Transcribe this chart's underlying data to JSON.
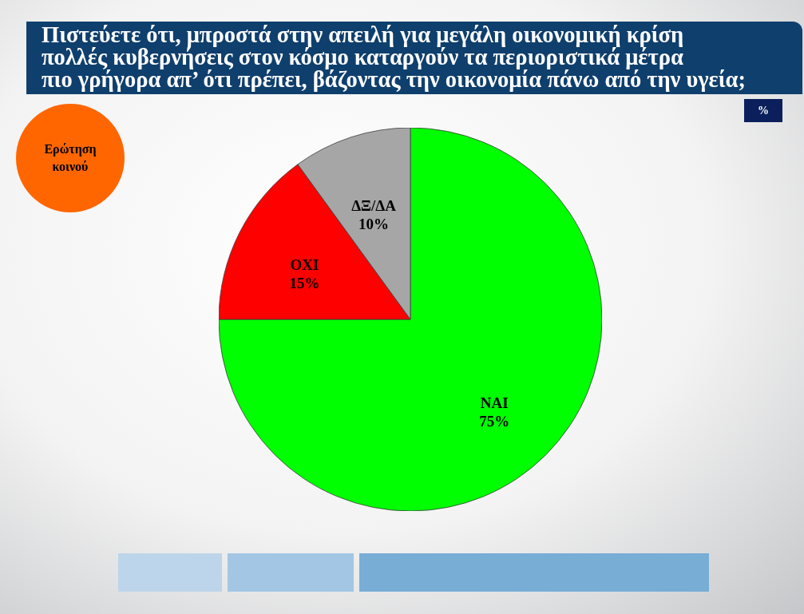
{
  "chart_data": {
    "type": "pie",
    "title": "Πιστεύετε ότι, μπροστά στην απειλή για μεγάλη οικονομική κρίση\nπολλές κυβερνήσεις στον κόσμο καταργούν τα περιοριστικά μέτρα\nπιο γρήγορα απ’ ότι πρέπει, βάζοντας την οικονομία πάνω από την υγεία;",
    "categories": [
      "ΝΑΙ",
      "ΟΧΙ",
      "ΔΞ/ΔΑ"
    ],
    "values": [
      75,
      15,
      10
    ],
    "colors": [
      "#00ff00",
      "#ff0000",
      "#a6a6a6"
    ],
    "value_labels": [
      "75%",
      "15%",
      "10%"
    ],
    "annotations": [
      "Ερώτηση κοινού",
      "%"
    ]
  }
}
